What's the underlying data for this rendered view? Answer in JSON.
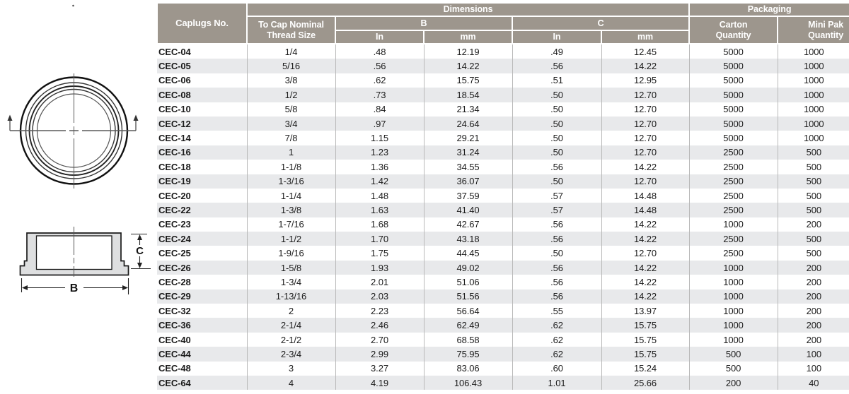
{
  "colors": {
    "header_bg": "#9d968d",
    "header_text": "#ffffff",
    "row_stripe": "#e8e9eb",
    "grid_line": "#b9b9b9",
    "drawing_fill": "#dedfe0",
    "drawing_line": "#1a1a1a"
  },
  "diagram": {
    "label_b": "B",
    "label_c": "C"
  },
  "table": {
    "headers": {
      "caplugs_no": "Caplugs No.",
      "thread_size": "To Cap Nominal\nThread Size",
      "dimensions": "Dimensions",
      "b": "B",
      "c": "C",
      "in_b": "In",
      "mm_b": "mm",
      "in_c": "In",
      "mm_c": "mm",
      "packaging": "Packaging",
      "carton": "Carton\nQuantity",
      "mini_pak": "Mini Pak\nQuantity"
    },
    "rows": [
      [
        "CEC-04",
        "1/4",
        ".48",
        "12.19",
        ".49",
        "12.45",
        "5000",
        "1000"
      ],
      [
        "CEC-05",
        "5/16",
        ".56",
        "14.22",
        ".56",
        "14.22",
        "5000",
        "1000"
      ],
      [
        "CEC-06",
        "3/8",
        ".62",
        "15.75",
        ".51",
        "12.95",
        "5000",
        "1000"
      ],
      [
        "CEC-08",
        "1/2",
        ".73",
        "18.54",
        ".50",
        "12.70",
        "5000",
        "1000"
      ],
      [
        "CEC-10",
        "5/8",
        ".84",
        "21.34",
        ".50",
        "12.70",
        "5000",
        "1000"
      ],
      [
        "CEC-12",
        "3/4",
        ".97",
        "24.64",
        ".50",
        "12.70",
        "5000",
        "1000"
      ],
      [
        "CEC-14",
        "7/8",
        "1.15",
        "29.21",
        ".50",
        "12.70",
        "5000",
        "1000"
      ],
      [
        "CEC-16",
        "1",
        "1.23",
        "31.24",
        ".50",
        "12.70",
        "2500",
        "500"
      ],
      [
        "CEC-18",
        "1-1/8",
        "1.36",
        "34.55",
        ".56",
        "14.22",
        "2500",
        "500"
      ],
      [
        "CEC-19",
        "1-3/16",
        "1.42",
        "36.07",
        ".50",
        "12.70",
        "2500",
        "500"
      ],
      [
        "CEC-20",
        "1-1/4",
        "1.48",
        "37.59",
        ".57",
        "14.48",
        "2500",
        "500"
      ],
      [
        "CEC-22",
        "1-3/8",
        "1.63",
        "41.40",
        ".57",
        "14.48",
        "2500",
        "500"
      ],
      [
        "CEC-23",
        "1-7/16",
        "1.68",
        "42.67",
        ".56",
        "14.22",
        "1000",
        "200"
      ],
      [
        "CEC-24",
        "1-1/2",
        "1.70",
        "43.18",
        ".56",
        "14.22",
        "2500",
        "500"
      ],
      [
        "CEC-25",
        "1-9/16",
        "1.75",
        "44.45",
        ".50",
        "12.70",
        "2500",
        "500"
      ],
      [
        "CEC-26",
        "1-5/8",
        "1.93",
        "49.02",
        ".56",
        "14.22",
        "1000",
        "200"
      ],
      [
        "CEC-28",
        "1-3/4",
        "2.01",
        "51.06",
        ".56",
        "14.22",
        "1000",
        "200"
      ],
      [
        "CEC-29",
        "1-13/16",
        "2.03",
        "51.56",
        ".56",
        "14.22",
        "1000",
        "200"
      ],
      [
        "CEC-32",
        "2",
        "2.23",
        "56.64",
        ".55",
        "13.97",
        "1000",
        "200"
      ],
      [
        "CEC-36",
        "2-1/4",
        "2.46",
        "62.49",
        ".62",
        "15.75",
        "1000",
        "200"
      ],
      [
        "CEC-40",
        "2-1/2",
        "2.70",
        "68.58",
        ".62",
        "15.75",
        "1000",
        "200"
      ],
      [
        "CEC-44",
        "2-3/4",
        "2.99",
        "75.95",
        ".62",
        "15.75",
        "500",
        "100"
      ],
      [
        "CEC-48",
        "3",
        "3.27",
        "83.06",
        ".60",
        "15.24",
        "500",
        "100"
      ],
      [
        "CEC-64",
        "4",
        "4.19",
        "106.43",
        "1.01",
        "25.66",
        "200",
        "40"
      ]
    ]
  }
}
